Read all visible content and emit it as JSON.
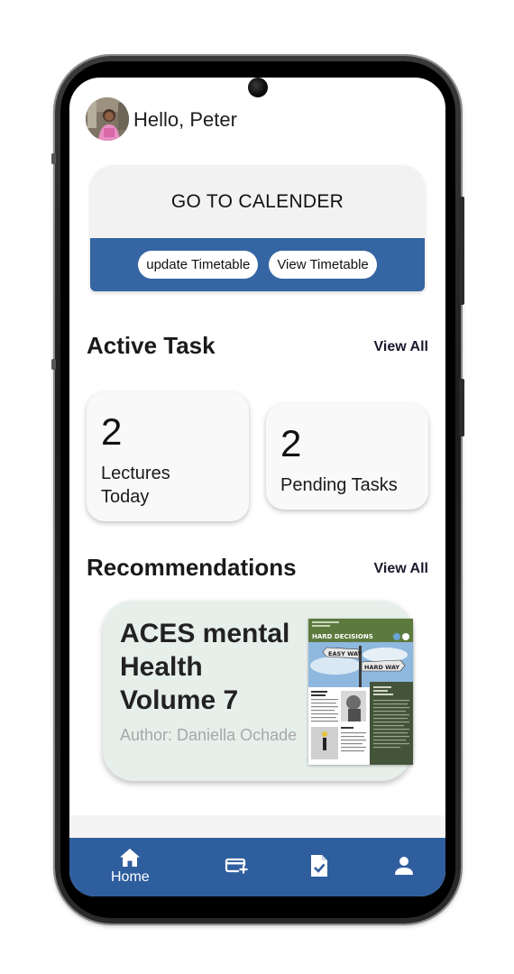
{
  "header": {
    "greeting": "Hello, Peter"
  },
  "calendar_card": {
    "title": "GO TO CALENDER",
    "buttons": [
      "update Timetable",
      "View Timetable"
    ]
  },
  "active_task": {
    "title": "Active Task",
    "view_all": "View All",
    "cards": [
      {
        "count": "2",
        "label_line1": "Lectures",
        "label_line2": "Today"
      },
      {
        "count": "2",
        "label_line1": "Pending Tasks"
      }
    ]
  },
  "recommendations": {
    "title": "Recommendations",
    "view_all": "View All",
    "item": {
      "title": "ACES mental Health Volume 7",
      "author": "Author: Daniella Ochade",
      "cover": {
        "header": "HARD DECISIONS",
        "sign_1": "EASY WAY",
        "sign_2": "HARD WAY"
      }
    }
  },
  "bottom_nav": {
    "items": [
      {
        "label": "Home",
        "icon": "home-icon"
      },
      {
        "label": "",
        "icon": "add-card-icon"
      },
      {
        "label": "",
        "icon": "task-check-icon"
      },
      {
        "label": "",
        "icon": "profile-icon"
      }
    ]
  },
  "colors": {
    "primary_blue": "#3565a2",
    "nav_blue": "#2f5e9e",
    "rec_card_bg": "#e6efea",
    "card_bg": "#f9f9f9"
  }
}
